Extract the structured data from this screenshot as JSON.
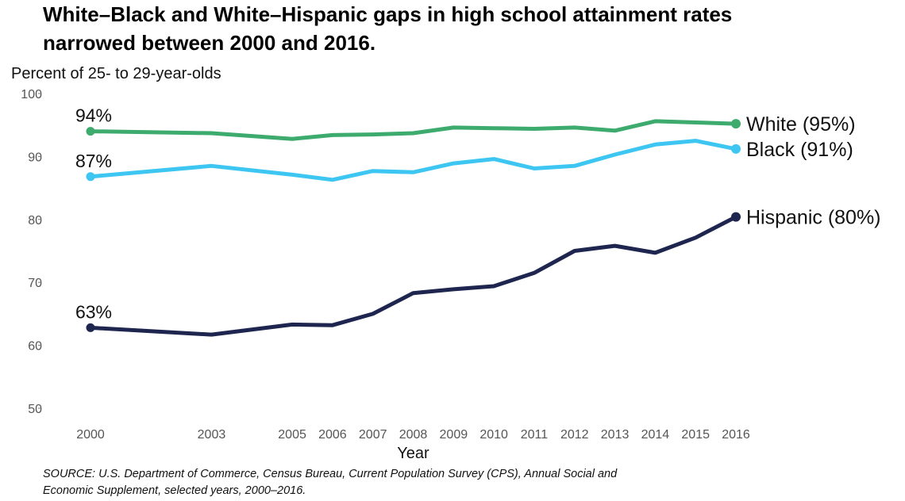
{
  "chart_data": {
    "type": "line",
    "title_line1": "White–Black and White–Hispanic gaps in high school attainment rates",
    "title_line2": "narrowed between 2000 and 2016.",
    "ylabel": "Percent of 25- to 29-year-olds",
    "xlabel": "Year",
    "ylim": [
      50,
      100
    ],
    "yticks": [
      50,
      60,
      70,
      80,
      90,
      100
    ],
    "x": [
      2000,
      2003,
      2005,
      2006,
      2007,
      2008,
      2009,
      2010,
      2011,
      2012,
      2013,
      2014,
      2015,
      2016
    ],
    "series": [
      {
        "name": "White",
        "color": "#3daa6e",
        "start_label": "94%",
        "end_label": "White (95%)",
        "values": [
          94,
          93.7,
          92.8,
          93.4,
          93.5,
          93.7,
          94.6,
          94.5,
          94.4,
          94.6,
          94.1,
          95.6,
          95.4,
          95.2
        ]
      },
      {
        "name": "Black",
        "color": "#3ec6f2",
        "start_label": "87%",
        "end_label": "Black (91%)",
        "values": [
          86.8,
          88.5,
          87.1,
          86.3,
          87.7,
          87.5,
          88.9,
          89.6,
          88.1,
          88.5,
          90.3,
          91.9,
          92.5,
          91.2
        ]
      },
      {
        "name": "Hispanic",
        "color": "#1e2650",
        "start_label": "63%",
        "end_label": "Hispanic (80%)",
        "values": [
          62.8,
          61.7,
          63.3,
          63.2,
          65.0,
          68.3,
          68.9,
          69.4,
          71.5,
          75.0,
          75.8,
          74.7,
          77.1,
          80.4
        ]
      }
    ]
  },
  "source": {
    "line1": "SOURCE: U.S. Department of Commerce, Census Bureau, Current Population Survey (CPS), Annual Social and",
    "line2": "Economic Supplement, selected years, 2000–2016."
  }
}
